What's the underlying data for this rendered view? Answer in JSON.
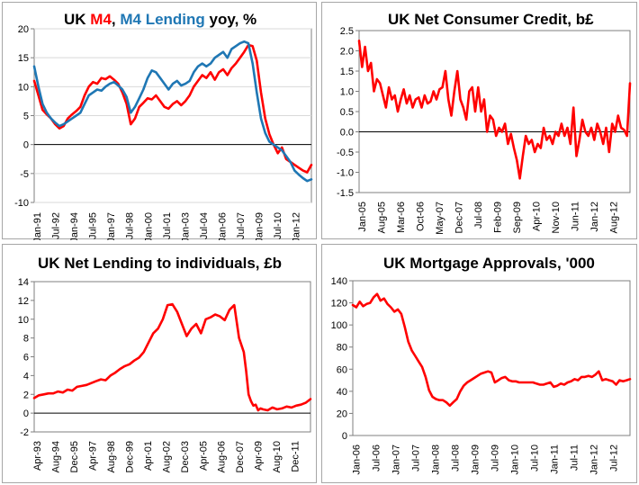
{
  "colors": {
    "red": "#ff0000",
    "blue": "#1f77b4",
    "axis": "#7f7f7f",
    "frame": "#a6a6a6"
  },
  "chart_data": [
    {
      "type": "line",
      "title_parts": [
        "UK ",
        "M4",
        ", ",
        "M4 Lending",
        " yoy, %"
      ],
      "ylim": [
        -10,
        20
      ],
      "yticks": [
        20,
        15,
        10,
        5,
        0,
        -5,
        -10
      ],
      "x_tick_labels": [
        "Jan-91",
        "Jul-92",
        "Jan-94",
        "Jul-95",
        "Jan-97",
        "Jul-98",
        "Jan-00",
        "Jul-01",
        "Jan-03",
        "Jul-04",
        "Jan-06",
        "Jul-07",
        "Jan-09",
        "Jul-10",
        "Jan-12"
      ],
      "x_range": [
        0,
        264
      ],
      "series": [
        {
          "name": "M4",
          "color": "#ff0000",
          "x": [
            0,
            4,
            8,
            12,
            16,
            20,
            24,
            28,
            32,
            36,
            40,
            44,
            48,
            52,
            56,
            60,
            64,
            68,
            72,
            76,
            80,
            84,
            88,
            92,
            96,
            100,
            104,
            108,
            112,
            116,
            120,
            124,
            128,
            132,
            136,
            140,
            144,
            148,
            152,
            156,
            160,
            164,
            168,
            172,
            176,
            180,
            184,
            188,
            192,
            196,
            200,
            204,
            208,
            212,
            216,
            220,
            224,
            228,
            232,
            236,
            240,
            244,
            248,
            252,
            256,
            260,
            264
          ],
          "values": [
            11,
            8.5,
            6,
            5.2,
            4.5,
            3.5,
            2.8,
            3.2,
            4.5,
            5.2,
            5.8,
            6.5,
            8.5,
            10,
            10.8,
            10.5,
            11.5,
            11.3,
            11.8,
            11.2,
            10.5,
            9,
            7,
            3.5,
            4.5,
            6.5,
            7.2,
            8,
            7.8,
            8.5,
            7.5,
            6.5,
            6.2,
            7,
            7.5,
            6.8,
            7.5,
            8.5,
            10,
            11,
            12,
            11.5,
            12.5,
            11.2,
            12.5,
            13,
            12,
            13.2,
            14,
            15,
            16,
            17.2,
            17,
            14.5,
            9,
            4.5,
            1.8,
            0,
            -1.5,
            -0.5,
            -2.5,
            -3,
            -3.5,
            -4,
            -4.5,
            -4.8,
            -3.5
          ]
        },
        {
          "name": "M4 Lending",
          "color": "#1f77b4",
          "x": [
            0,
            4,
            8,
            12,
            16,
            20,
            24,
            28,
            32,
            36,
            40,
            44,
            48,
            52,
            56,
            60,
            64,
            68,
            72,
            76,
            80,
            84,
            88,
            92,
            96,
            100,
            104,
            108,
            112,
            116,
            120,
            124,
            128,
            132,
            136,
            140,
            144,
            148,
            152,
            156,
            160,
            164,
            168,
            172,
            176,
            180,
            184,
            188,
            192,
            196,
            200,
            204,
            208,
            212,
            216,
            220,
            224,
            228,
            232,
            236,
            240,
            244,
            248,
            252,
            256,
            260,
            264
          ],
          "values": [
            13.5,
            10,
            7,
            5.5,
            4.5,
            3.8,
            3.2,
            3.5,
            4,
            4.5,
            5,
            5.5,
            7,
            8.5,
            9,
            9.5,
            9.3,
            10,
            10.5,
            10.8,
            10.2,
            9.5,
            8.2,
            5.5,
            6.5,
            8,
            9.5,
            11.5,
            12.8,
            12.5,
            11.5,
            10.5,
            9.5,
            10.5,
            11,
            10.2,
            10.5,
            11,
            12.5,
            13.5,
            14,
            13.5,
            14,
            15,
            15.5,
            16,
            15,
            16.5,
            17,
            17.5,
            17.8,
            17.5,
            14,
            9,
            4.5,
            2,
            0.5,
            0,
            -0.5,
            -1,
            -2,
            -3,
            -4.5,
            -5.2,
            -5.8,
            -6.3,
            -6
          ]
        }
      ]
    },
    {
      "type": "line",
      "title": "UK Net Consumer Credit, b£",
      "ylim": [
        -1.5,
        2.5
      ],
      "yticks": [
        "2.5",
        "2.0",
        "1.5",
        "1.0",
        "0.5",
        "0.0",
        "-0.5",
        "-1.0",
        "-1.5"
      ],
      "x_tick_labels": [
        "Jan-05",
        "Aug-05",
        "Mar-06",
        "Oct-06",
        "May-07",
        "Dec-07",
        "Jul-08",
        "Feb-09",
        "Sep-09",
        "Apr-10",
        "Nov-10",
        "Jun-11",
        "Jan-12",
        "Aug-12"
      ],
      "x_range": [
        0,
        91
      ],
      "series": [
        {
          "name": "Net Consumer Credit",
          "color": "#ff0000",
          "x": [
            0,
            1,
            2,
            3,
            4,
            5,
            6,
            7,
            8,
            9,
            10,
            11,
            12,
            13,
            14,
            15,
            16,
            17,
            18,
            19,
            20,
            21,
            22,
            23,
            24,
            25,
            26,
            27,
            28,
            29,
            30,
            31,
            32,
            33,
            34,
            35,
            36,
            37,
            38,
            39,
            40,
            41,
            42,
            43,
            44,
            45,
            46,
            47,
            48,
            49,
            50,
            51,
            52,
            53,
            54,
            55,
            56,
            57,
            58,
            59,
            60,
            61,
            62,
            63,
            64,
            65,
            66,
            67,
            68,
            69,
            70,
            71,
            72,
            73,
            74,
            75,
            76,
            77,
            78,
            79,
            80,
            81,
            82,
            83,
            84,
            85,
            86,
            87,
            88,
            89,
            90,
            91
          ],
          "values": [
            2.25,
            1.6,
            2.1,
            1.5,
            1.7,
            1.0,
            1.3,
            1.2,
            0.9,
            0.6,
            1.1,
            0.8,
            0.9,
            0.5,
            0.8,
            1.05,
            0.7,
            0.9,
            0.6,
            0.8,
            0.85,
            0.6,
            0.9,
            0.7,
            0.75,
            1.0,
            0.8,
            1.05,
            1.1,
            1.5,
            0.8,
            0.4,
            1.0,
            1.5,
            0.8,
            0.6,
            0.3,
            1.0,
            1.1,
            0.5,
            1.1,
            0.5,
            0.8,
            0.0,
            0.4,
            0.3,
            -0.1,
            0.1,
            0.0,
            0.2,
            -0.3,
            -0.05,
            -0.4,
            -0.7,
            -1.15,
            -0.6,
            -0.1,
            -0.3,
            -0.2,
            -0.5,
            -0.3,
            -0.4,
            0.1,
            -0.2,
            -0.1,
            -0.3,
            0.0,
            -0.1,
            0.2,
            -0.1,
            0.1,
            -0.3,
            0.6,
            -0.6,
            -0.2,
            0.3,
            0.0,
            -0.1,
            0.1,
            -0.2,
            0.2,
            0.0,
            -0.3,
            0.1,
            -0.5,
            0.2,
            0.0,
            0.4,
            0.1,
            0.05,
            -0.1,
            1.2
          ]
        }
      ]
    },
    {
      "type": "line",
      "title": "UK Net Lending to individuals, £b",
      "ylim": [
        -2,
        14
      ],
      "yticks": [
        14,
        12,
        10,
        8,
        6,
        4,
        2,
        0,
        -2
      ],
      "x_tick_labels": [
        "Apr-93",
        "Aug-94",
        "Dec-95",
        "Apr-97",
        "Aug-98",
        "Dec-99",
        "Apr-01",
        "Aug-02",
        "Dec-03",
        "Apr-05",
        "Aug-06",
        "Dec-07",
        "Apr-09",
        "Aug-10",
        "Dec-11"
      ],
      "x_range": [
        0,
        232
      ],
      "series": [
        {
          "name": "Net Lending",
          "color": "#ff0000",
          "x": [
            0,
            4,
            8,
            12,
            16,
            20,
            24,
            28,
            32,
            36,
            40,
            44,
            48,
            52,
            56,
            60,
            64,
            68,
            72,
            76,
            80,
            84,
            88,
            92,
            96,
            100,
            104,
            108,
            112,
            116,
            120,
            124,
            128,
            132,
            136,
            140,
            144,
            148,
            152,
            156,
            160,
            164,
            168,
            172,
            176,
            178,
            180,
            182,
            184,
            186,
            188,
            190,
            192,
            196,
            200,
            204,
            208,
            212,
            216,
            220,
            224,
            228,
            232
          ],
          "values": [
            1.6,
            1.9,
            2.0,
            2.1,
            2.1,
            2.3,
            2.2,
            2.5,
            2.4,
            2.8,
            2.9,
            3.0,
            3.2,
            3.4,
            3.6,
            3.5,
            4.0,
            4.3,
            4.7,
            5.0,
            5.2,
            5.6,
            5.9,
            6.5,
            7.5,
            8.5,
            9.0,
            10.0,
            11.5,
            11.6,
            10.8,
            9.5,
            8.2,
            9.0,
            9.5,
            8.5,
            10.0,
            10.2,
            10.5,
            10.3,
            9.9,
            11.0,
            11.5,
            8.0,
            6.5,
            4.5,
            2.0,
            1.3,
            0.8,
            0.9,
            0.3,
            0.5,
            0.4,
            0.3,
            0.6,
            0.4,
            0.5,
            0.7,
            0.6,
            0.8,
            0.9,
            1.1,
            1.5
          ]
        }
      ]
    },
    {
      "type": "line",
      "title": "UK Mortgage Approvals, '000",
      "ylim": [
        0,
        140
      ],
      "yticks": [
        140,
        120,
        100,
        80,
        60,
        40,
        20,
        0
      ],
      "x_tick_labels": [
        "Jan-06",
        "Jul-06",
        "Jan-07",
        "Jul-07",
        "Jan-08",
        "Jul-08",
        "Jan-09",
        "Jul-09",
        "Jan-10",
        "Jul-10",
        "Jan-11",
        "Jul-11",
        "Jan-12",
        "Jul-12"
      ],
      "x_range": [
        0,
        80
      ],
      "series": [
        {
          "name": "Mortgage Approvals",
          "color": "#ff0000",
          "x": [
            0,
            1,
            2,
            3,
            4,
            5,
            6,
            7,
            8,
            9,
            10,
            11,
            12,
            13,
            14,
            15,
            16,
            17,
            18,
            19,
            20,
            21,
            22,
            23,
            24,
            25,
            26,
            27,
            28,
            29,
            30,
            31,
            32,
            33,
            34,
            35,
            36,
            37,
            38,
            39,
            40,
            41,
            42,
            43,
            44,
            45,
            46,
            47,
            48,
            49,
            50,
            51,
            52,
            53,
            54,
            55,
            56,
            57,
            58,
            59,
            60,
            61,
            62,
            63,
            64,
            65,
            66,
            67,
            68,
            69,
            70,
            71,
            72,
            73,
            74,
            75,
            76,
            77,
            78,
            79,
            80
          ],
          "values": [
            118,
            116,
            121,
            117,
            119,
            120,
            125,
            128,
            122,
            124,
            119,
            116,
            112,
            114,
            110,
            98,
            85,
            77,
            72,
            67,
            62,
            53,
            41,
            35,
            33,
            32,
            32,
            30,
            27,
            30,
            33,
            40,
            45,
            48,
            50,
            52,
            54,
            56,
            57,
            58,
            57,
            48,
            50,
            52,
            53,
            50,
            49,
            49,
            48,
            48,
            48,
            48,
            48,
            47,
            46,
            46,
            47,
            48,
            44,
            45,
            47,
            46,
            48,
            49,
            51,
            50,
            53,
            53,
            54,
            53,
            55,
            58,
            50,
            51,
            50,
            49,
            46,
            50,
            49,
            50,
            51
          ]
        }
      ]
    }
  ]
}
